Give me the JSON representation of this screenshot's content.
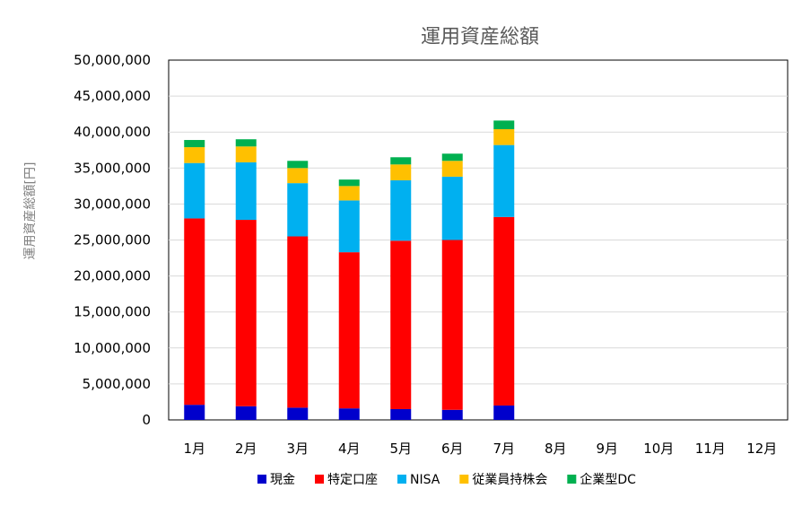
{
  "chart_data": {
    "type": "bar",
    "stacked": true,
    "title": "運用資産総額",
    "xlabel": "",
    "ylabel": "運用資産総額[円]",
    "ylim": [
      0,
      50000000
    ],
    "yticks": [
      0,
      5000000,
      10000000,
      15000000,
      20000000,
      25000000,
      30000000,
      35000000,
      40000000,
      45000000,
      50000000
    ],
    "ytick_labels": [
      "0",
      "5,000,000",
      "10,000,000",
      "15,000,000",
      "20,000,000",
      "25,000,000",
      "30,000,000",
      "35,000,000",
      "40,000,000",
      "45,000,000",
      "50,000,000"
    ],
    "categories": [
      "1月",
      "2月",
      "3月",
      "4月",
      "5月",
      "6月",
      "7月",
      "8月",
      "9月",
      "10月",
      "11月",
      "12月"
    ],
    "grid": true,
    "legend_position": "bottom",
    "series": [
      {
        "name": "現金",
        "color": "#0000cc",
        "values": [
          2100000,
          1900000,
          1700000,
          1600000,
          1500000,
          1400000,
          2000000,
          null,
          null,
          null,
          null,
          null
        ]
      },
      {
        "name": "特定口座",
        "color": "#ff0000",
        "values": [
          25900000,
          25900000,
          23800000,
          21700000,
          23400000,
          23600000,
          26200000,
          null,
          null,
          null,
          null,
          null
        ]
      },
      {
        "name": "NISA",
        "color": "#00b0f0",
        "values": [
          7700000,
          8000000,
          7400000,
          7200000,
          8400000,
          8800000,
          10000000,
          null,
          null,
          null,
          null,
          null
        ]
      },
      {
        "name": "従業員持株会",
        "color": "#ffc000",
        "values": [
          2200000,
          2200000,
          2100000,
          2000000,
          2200000,
          2200000,
          2200000,
          null,
          null,
          null,
          null,
          null
        ]
      },
      {
        "name": "企業型DC",
        "color": "#00b050",
        "values": [
          1000000,
          1000000,
          1000000,
          900000,
          1000000,
          1000000,
          1200000,
          null,
          null,
          null,
          null,
          null
        ]
      }
    ]
  }
}
